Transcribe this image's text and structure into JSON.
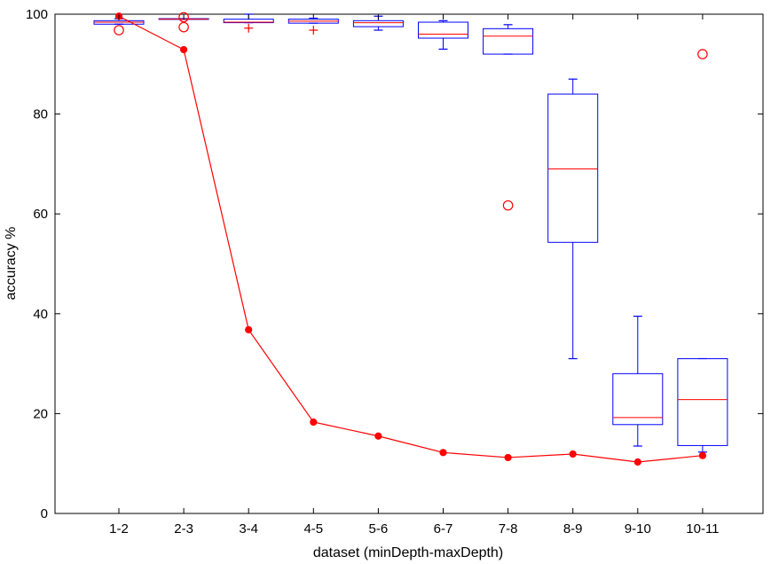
{
  "chart_data": {
    "type": "box",
    "xlabel": "dataset (minDepth-maxDepth)",
    "ylabel": "accuracy %",
    "ylim": [
      0,
      100
    ],
    "yticks": [
      0,
      20,
      40,
      60,
      80,
      100
    ],
    "categories": [
      "1-2",
      "2-3",
      "3-4",
      "4-5",
      "5-6",
      "6-7",
      "7-8",
      "8-9",
      "9-10",
      "10-11"
    ],
    "grid": false,
    "boxes": [
      {
        "category": "1-2",
        "whisker_low": 98.0,
        "q1": 98.0,
        "median": 98.4,
        "q3": 98.7,
        "whisker_high": 99.1
      },
      {
        "category": "2-3",
        "whisker_low": 99.0,
        "q1": 99.0,
        "median": 99.0,
        "q3": 99.1,
        "whisker_high": 99.1
      },
      {
        "category": "3-4",
        "whisker_low": 98.3,
        "q1": 98.3,
        "median": 98.4,
        "q3": 99.0,
        "whisker_high": 100.0
      },
      {
        "category": "4-5",
        "whisker_low": 98.2,
        "q1": 98.2,
        "median": 98.6,
        "q3": 99.0,
        "whisker_high": 99.2
      },
      {
        "category": "5-6",
        "whisker_low": 96.8,
        "q1": 97.5,
        "median": 98.3,
        "q3": 98.7,
        "whisker_high": 99.6
      },
      {
        "category": "6-7",
        "whisker_low": 93.0,
        "q1": 95.2,
        "median": 96.0,
        "q3": 98.4,
        "whisker_high": 98.7
      },
      {
        "category": "7-8",
        "whisker_low": 92.0,
        "q1": 92.0,
        "median": 95.6,
        "q3": 97.1,
        "whisker_high": 97.9
      },
      {
        "category": "8-9",
        "whisker_low": 31.0,
        "q1": 54.3,
        "median": 69.0,
        "q3": 84.0,
        "whisker_high": 87.0
      },
      {
        "category": "9-10",
        "whisker_low": 13.5,
        "q1": 17.8,
        "median": 19.2,
        "q3": 28.0,
        "whisker_high": 39.5
      },
      {
        "category": "10-11",
        "whisker_low": 12.3,
        "q1": 13.6,
        "median": 22.8,
        "q3": 31.0,
        "whisker_high": 31.0
      }
    ],
    "outliers": [
      {
        "category": "1-2",
        "value": 96.8,
        "marker": "circle"
      },
      {
        "category": "2-3",
        "value": 99.4,
        "marker": "circle"
      },
      {
        "category": "2-3",
        "value": 97.4,
        "marker": "circle"
      },
      {
        "category": "3-4",
        "value": 97.2,
        "marker": "plus"
      },
      {
        "category": "4-5",
        "value": 96.8,
        "marker": "plus"
      },
      {
        "category": "7-8",
        "value": 61.7,
        "marker": "circle"
      },
      {
        "category": "10-11",
        "value": 92.0,
        "marker": "circle"
      }
    ],
    "series": [
      {
        "type": "line",
        "values": [
          99.6,
          92.9,
          36.8,
          18.3,
          15.5,
          12.2,
          11.2,
          11.9,
          10.3,
          11.6
        ]
      }
    ],
    "colors": {
      "box": "#0000ff",
      "median": "#ff0000",
      "outlier": "#ff0000",
      "line": "#ff0000",
      "axis": "#000000"
    }
  }
}
